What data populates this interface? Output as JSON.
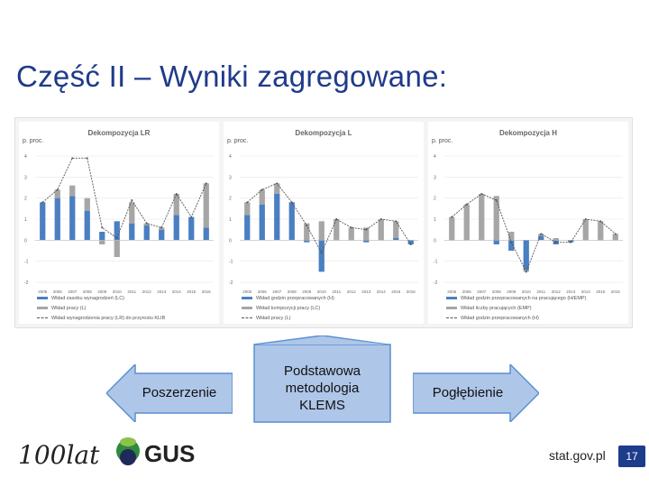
{
  "slide": {
    "title": "Część II – Wyniki zagregowane:",
    "site": "stat.gov.pl",
    "page_number": "17",
    "logo_100": "100lat",
    "logo_gus": "GUS"
  },
  "arrows": {
    "left": "Poszerzenie",
    "center": "Podstawowa metodologia KLEMS",
    "right": "Pogłębienie"
  },
  "colors": {
    "title": "#1f3a8a",
    "bar_blue": "#4a7fc1",
    "bar_gray": "#a6a6a6",
    "arrow_fill": "#aec6e8",
    "arrow_stroke": "#5b8fd0",
    "page_badge": "#1e3c8c"
  },
  "chart_data": [
    {
      "type": "bar",
      "title": "Dekompozycja LR",
      "ylabel": "p. proc.",
      "ylim": [
        -2,
        4
      ],
      "yticks": [
        "4",
        "3",
        "2",
        "1",
        "0",
        "-1",
        "-2"
      ],
      "categories": [
        "2005",
        "2006",
        "2007",
        "2008",
        "2009",
        "2010",
        "2011",
        "2012",
        "2013",
        "2014",
        "2015",
        "2016"
      ],
      "series": [
        {
          "name": "Wkład zasobu wynagrodzeń (LC)",
          "kind": "bar",
          "values": [
            1.8,
            2.0,
            2.1,
            1.4,
            0.4,
            0.9,
            0.8,
            0.7,
            0.5,
            1.2,
            1.1,
            0.6
          ]
        },
        {
          "name": "Wkład pracy (L)",
          "kind": "bar",
          "values": [
            0.0,
            0.4,
            0.5,
            0.6,
            -0.2,
            -0.8,
            1.0,
            0.1,
            0.1,
            1.0,
            0.0,
            2.1
          ]
        },
        {
          "name": "Wkład wynagrodzenia pracy (LR) do przyrostu KLIB",
          "kind": "line",
          "values": [
            1.8,
            2.4,
            3.9,
            3.9,
            0.6,
            0.1,
            1.9,
            0.8,
            0.6,
            2.2,
            1.1,
            2.7
          ]
        }
      ]
    },
    {
      "type": "bar",
      "title": "Dekompozycja L",
      "ylabel": "p. proc.",
      "ylim": [
        -2,
        4
      ],
      "yticks": [
        "4",
        "3",
        "2",
        "1",
        "0",
        "-1",
        "-2"
      ],
      "categories": [
        "2005",
        "2006",
        "2007",
        "2008",
        "2009",
        "2010",
        "2011",
        "2012",
        "2013",
        "2014",
        "2015",
        "2016"
      ],
      "series": [
        {
          "name": "Wkład godzin przepracowanych (H)",
          "kind": "bar",
          "values": [
            1.2,
            1.7,
            2.2,
            1.8,
            -0.1,
            -1.5,
            0.0,
            0.0,
            -0.1,
            0.0,
            0.1,
            -0.2
          ]
        },
        {
          "name": "Wkład kompozycji pracy (LC)",
          "kind": "bar",
          "values": [
            0.6,
            0.7,
            0.5,
            0.0,
            0.8,
            0.9,
            1.0,
            0.6,
            0.6,
            1.0,
            0.8,
            0.0
          ]
        },
        {
          "name": "Wkład pracy (L)",
          "kind": "line",
          "values": [
            1.8,
            2.4,
            2.7,
            1.8,
            0.7,
            -0.6,
            1.0,
            0.6,
            0.5,
            1.0,
            0.9,
            -0.2
          ]
        }
      ]
    },
    {
      "type": "bar",
      "title": "Dekompozycja H",
      "ylabel": "p. proc.",
      "ylim": [
        -2,
        4
      ],
      "yticks": [
        "4",
        "3",
        "2",
        "1",
        "0",
        "-1",
        "-2"
      ],
      "categories": [
        "2005",
        "2006",
        "2007",
        "2008",
        "2009",
        "2010",
        "2011",
        "2012",
        "2013",
        "2014",
        "2015",
        "2016"
      ],
      "series": [
        {
          "name": "Wkład godzin przepracowanych na pracującego (H/EMP)",
          "kind": "bar",
          "values": [
            0.0,
            0.0,
            0.0,
            -0.2,
            -0.5,
            -1.4,
            0.2,
            -0.2,
            -0.1,
            0.0,
            0.0,
            0.0
          ]
        },
        {
          "name": "Wkład liczby pracujących (EMP)",
          "kind": "bar",
          "values": [
            1.1,
            1.7,
            2.2,
            2.1,
            0.4,
            -0.1,
            0.1,
            0.1,
            0.0,
            1.0,
            0.9,
            0.3
          ]
        },
        {
          "name": "Wkład godzin przepracowanych (H)",
          "kind": "line",
          "values": [
            1.1,
            1.7,
            2.2,
            1.9,
            -0.1,
            -1.5,
            0.3,
            -0.1,
            -0.1,
            1.0,
            0.9,
            0.3
          ]
        }
      ]
    }
  ]
}
